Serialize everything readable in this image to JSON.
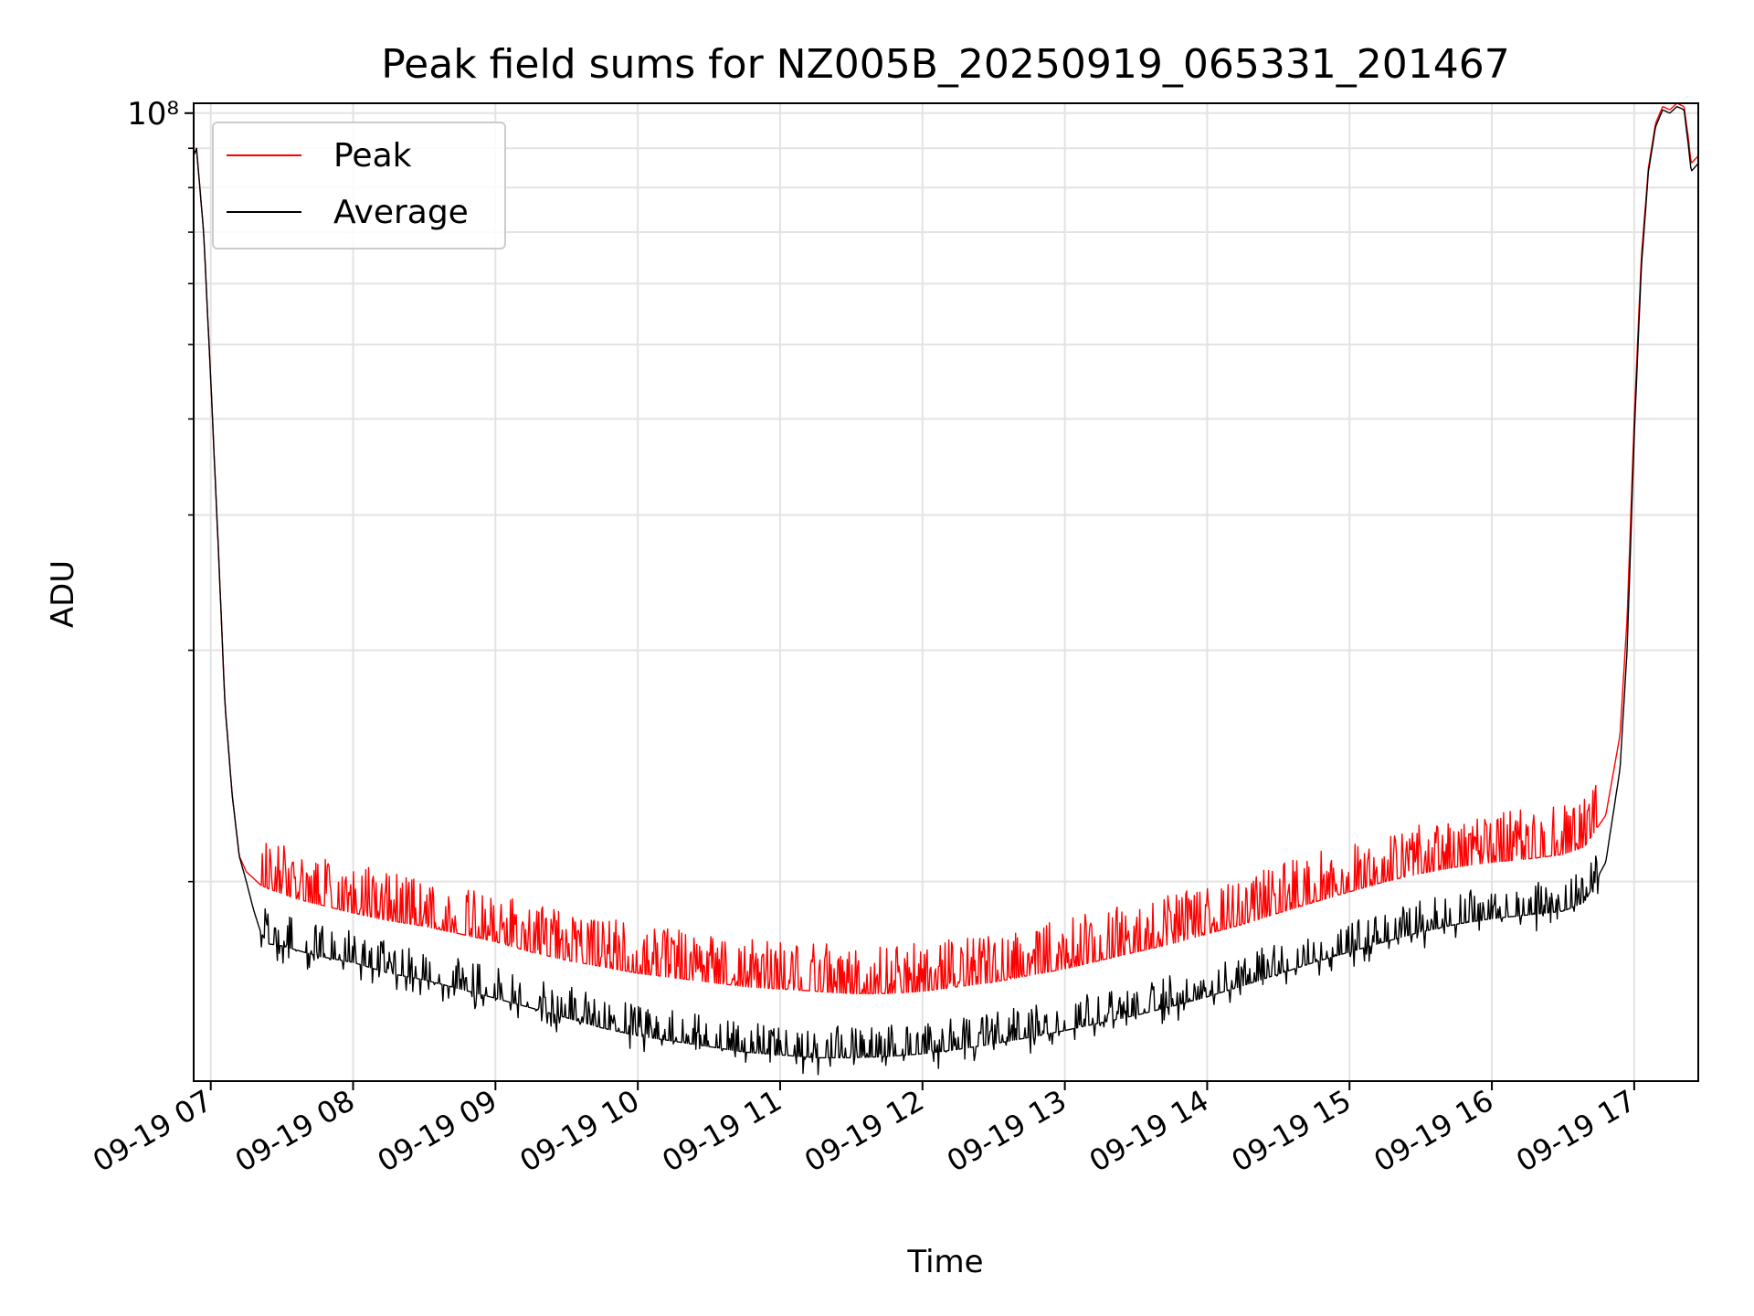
{
  "chart_data": {
    "type": "line",
    "title": "Peak field sums for NZ005B_20250919_065331_201467",
    "xlabel": "Time",
    "ylabel": "ADU",
    "y_scale": "log",
    "ylim": [
      5500000,
      103000000
    ],
    "xlim": [
      6.88,
      17.45
    ],
    "x_ticks": [
      7,
      8,
      9,
      10,
      11,
      12,
      13,
      14,
      15,
      16,
      17
    ],
    "x_tick_labels": [
      "09-19 07",
      "09-19 08",
      "09-19 09",
      "09-19 10",
      "09-19 11",
      "09-19 12",
      "09-19 13",
      "09-19 14",
      "09-19 15",
      "09-19 16",
      "09-19 17"
    ],
    "y_major_tick_label": "10⁸",
    "y_major_tick_value": 100000000,
    "y_minor_ticks": [
      10000000,
      20000000,
      30000000,
      40000000,
      50000000,
      60000000,
      70000000,
      80000000,
      90000000
    ],
    "grid": true,
    "legend": {
      "placement": "top-left",
      "entries": [
        "Peak",
        "Average"
      ]
    },
    "series": [
      {
        "name": "Peak",
        "color": "#ff0000",
        "noise": "upward spikes",
        "x": [
          6.88,
          6.9,
          6.95,
          7.0,
          7.05,
          7.1,
          7.15,
          7.2,
          7.25,
          7.3,
          7.35,
          7.4,
          7.5,
          7.6,
          7.75,
          8.0,
          8.25,
          8.5,
          8.75,
          9.0,
          9.25,
          9.5,
          9.75,
          10.0,
          10.25,
          10.5,
          10.75,
          11.0,
          11.25,
          11.5,
          11.75,
          12.0,
          12.25,
          12.5,
          12.75,
          13.0,
          13.25,
          13.5,
          13.75,
          14.0,
          14.25,
          14.5,
          14.75,
          15.0,
          15.25,
          15.5,
          15.75,
          16.0,
          16.25,
          16.5,
          16.65,
          16.8,
          16.9,
          16.95,
          17.0,
          17.05,
          17.1,
          17.15,
          17.2,
          17.25,
          17.3,
          17.35,
          17.38,
          17.4,
          17.45
        ],
        "values": [
          88000000,
          90000000,
          70000000,
          45000000,
          28000000,
          17000000,
          13000000,
          10800000,
          10300000,
          10100000,
          9900000,
          9800000,
          9650000,
          9500000,
          9350000,
          9100000,
          8900000,
          8750000,
          8550000,
          8350000,
          8100000,
          7900000,
          7750000,
          7600000,
          7500000,
          7400000,
          7300000,
          7250000,
          7200000,
          7150000,
          7150000,
          7200000,
          7300000,
          7400000,
          7550000,
          7700000,
          7900000,
          8100000,
          8300000,
          8550000,
          8800000,
          9100000,
          9400000,
          9700000,
          10000000,
          10250000,
          10450000,
          10600000,
          10700000,
          10850000,
          11100000,
          12200000,
          15500000,
          22000000,
          40000000,
          65000000,
          85000000,
          97000000,
          102000000,
          101000000,
          103000000,
          102000000,
          93000000,
          86000000,
          88000000
        ]
      },
      {
        "name": "Average",
        "color": "#000000",
        "noise": "downward spikes",
        "x": [
          6.88,
          6.9,
          6.95,
          7.0,
          7.05,
          7.1,
          7.15,
          7.2,
          7.25,
          7.3,
          7.35,
          7.4,
          7.5,
          7.6,
          7.75,
          8.0,
          8.25,
          8.5,
          8.75,
          9.0,
          9.25,
          9.5,
          9.75,
          10.0,
          10.25,
          10.5,
          10.75,
          11.0,
          11.25,
          11.5,
          11.75,
          12.0,
          12.25,
          12.5,
          12.75,
          13.0,
          13.25,
          13.5,
          13.75,
          14.0,
          14.25,
          14.5,
          14.75,
          15.0,
          15.25,
          15.5,
          15.75,
          16.0,
          16.25,
          16.5,
          16.65,
          16.8,
          16.9,
          16.95,
          17.0,
          17.05,
          17.1,
          17.15,
          17.2,
          17.25,
          17.3,
          17.35,
          17.38,
          17.4,
          17.45
        ],
        "values": [
          88000000,
          90000000,
          70000000,
          45000000,
          28000000,
          17000000,
          13000000,
          10800000,
          10000000,
          9200000,
          8600000,
          8300000,
          8250000,
          8150000,
          8000000,
          7850000,
          7600000,
          7450000,
          7250000,
          7050000,
          6850000,
          6650000,
          6450000,
          6300000,
          6200000,
          6100000,
          6000000,
          5950000,
          5900000,
          5900000,
          5920000,
          5970000,
          6050000,
          6150000,
          6270000,
          6400000,
          6550000,
          6700000,
          6880000,
          7080000,
          7320000,
          7580000,
          7850000,
          8100000,
          8350000,
          8600000,
          8800000,
          8950000,
          9050000,
          9150000,
          9400000,
          10600000,
          14000000,
          20000000,
          38000000,
          63000000,
          84000000,
          96000000,
          101000000,
          100000000,
          102000000,
          101000000,
          91000000,
          84000000,
          86000000
        ]
      }
    ]
  }
}
